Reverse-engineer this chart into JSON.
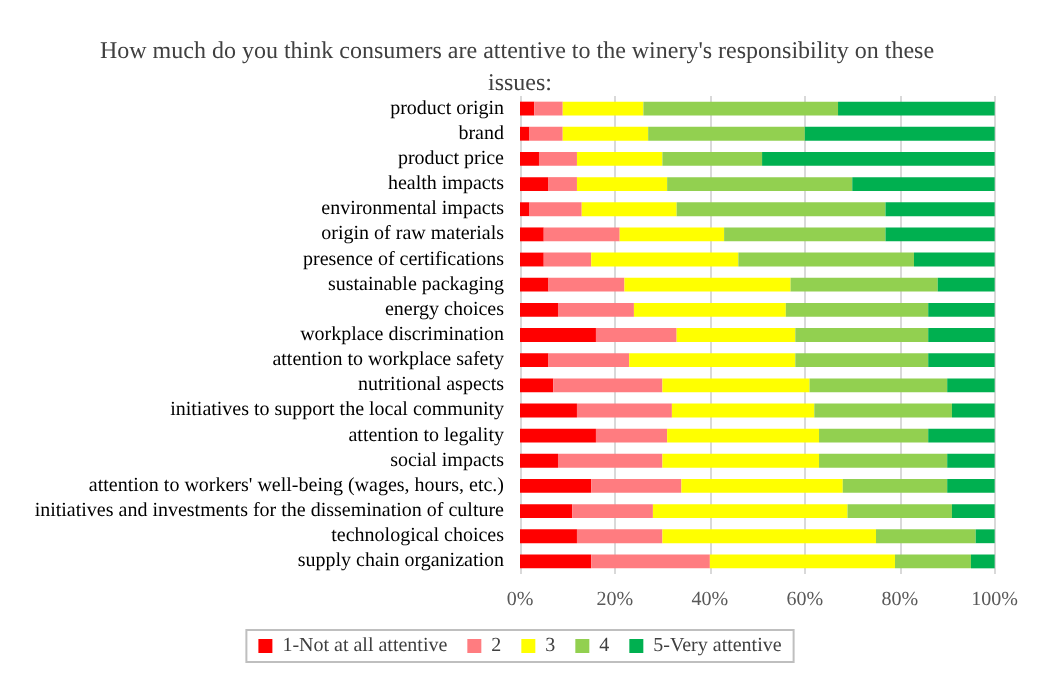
{
  "chart_data": {
    "type": "bar",
    "orientation": "horizontal",
    "stacked": true,
    "title": "How much do you think consumers are attentive to the winery's responsibility on these issues:",
    "categories": [
      "product origin",
      "brand",
      "product price",
      "health impacts",
      "environmental impacts",
      "origin of raw materials",
      "presence of certifications",
      "sustainable packaging",
      "energy choices",
      "workplace discrimination",
      "attention to workplace safety",
      "nutritional aspects",
      "initiatives to support the local community",
      "attention to legality",
      "social impacts",
      "attention to workers' well-being (wages, hours, etc.)",
      "initiatives and investments for the dissemination of culture",
      "technological choices",
      "supply chain organization"
    ],
    "series": [
      {
        "name": "1-Not at all attentive",
        "color": "#ff0000",
        "values": [
          3,
          2,
          4,
          6,
          2,
          5,
          5,
          6,
          8,
          16,
          6,
          7,
          12,
          16,
          8,
          15,
          11,
          12,
          15
        ]
      },
      {
        "name": "2",
        "color": "#ff7c80",
        "values": [
          6,
          7,
          8,
          6,
          11,
          16,
          10,
          16,
          16,
          17,
          17,
          23,
          20,
          15,
          22,
          19,
          17,
          18,
          25
        ]
      },
      {
        "name": "3",
        "color": "#ffff00",
        "values": [
          17,
          18,
          18,
          19,
          20,
          22,
          31,
          35,
          32,
          25,
          35,
          31,
          30,
          32,
          33,
          34,
          41,
          45,
          39
        ]
      },
      {
        "name": "4",
        "color": "#92d050",
        "values": [
          41,
          33,
          21,
          39,
          44,
          34,
          37,
          31,
          30,
          28,
          28,
          29,
          29,
          23,
          27,
          22,
          22,
          21,
          16
        ]
      },
      {
        "name": "5-Very attentive",
        "color": "#00b050",
        "values": [
          33,
          40,
          49,
          30,
          23,
          23,
          17,
          12,
          14,
          14,
          14,
          10,
          9,
          14,
          10,
          10,
          9,
          4,
          5
        ]
      }
    ],
    "xlim": [
      0,
      100
    ],
    "xticks": [
      {
        "value": 0,
        "label": "0%"
      },
      {
        "value": 20,
        "label": "20%"
      },
      {
        "value": 40,
        "label": "40%"
      },
      {
        "value": 60,
        "label": "60%"
      },
      {
        "value": 80,
        "label": "80%"
      },
      {
        "value": 100,
        "label": "100%"
      }
    ],
    "grid": "x",
    "legend": "bottom"
  }
}
